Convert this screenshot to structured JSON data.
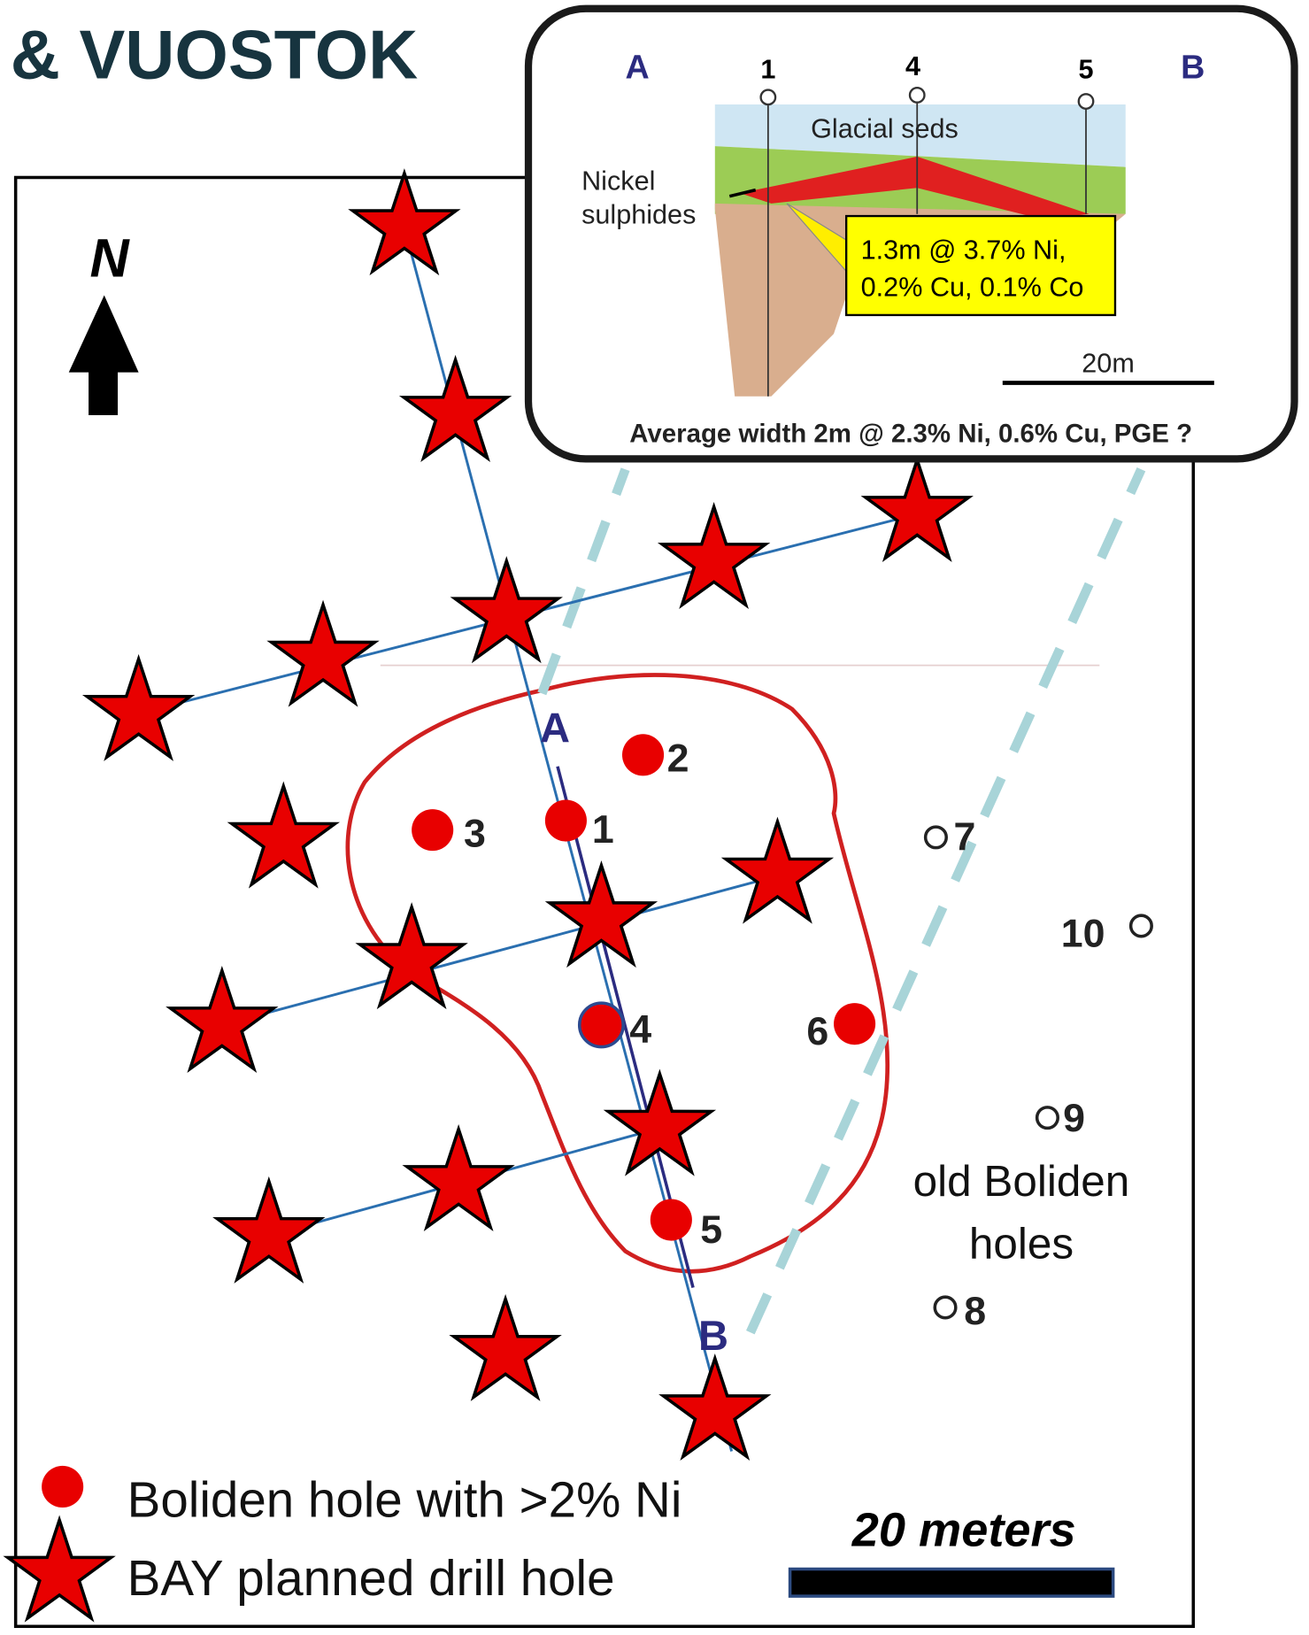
{
  "header": {
    "title": "& VUOSTOK"
  },
  "map": {
    "north": "N",
    "section_labels": [
      "A",
      "B"
    ],
    "hole_labels": [
      "2",
      "3",
      "1",
      "4",
      "6",
      "5"
    ],
    "old_hole_labels": [
      "7",
      "10",
      "9",
      "8"
    ],
    "old_holes_note": [
      "old Boliden",
      "holes"
    ]
  },
  "inset": {
    "ends": [
      "A",
      "B"
    ],
    "holes": [
      "1",
      "4",
      "5"
    ],
    "layer": "Glacial seds",
    "mineral": [
      "Nickel",
      "sulphides"
    ],
    "callout": [
      "1.3m @ 3.7% Ni,",
      "0.2% Cu, 0.1% Co"
    ],
    "scale": "20m",
    "caption": "Average width 2m @ 2.3% Ni, 0.6% Cu, PGE ?"
  },
  "legend": {
    "items": [
      "Boliden hole with >2% Ni",
      "BAY planned drill hole"
    ],
    "scale": "20 meters"
  }
}
